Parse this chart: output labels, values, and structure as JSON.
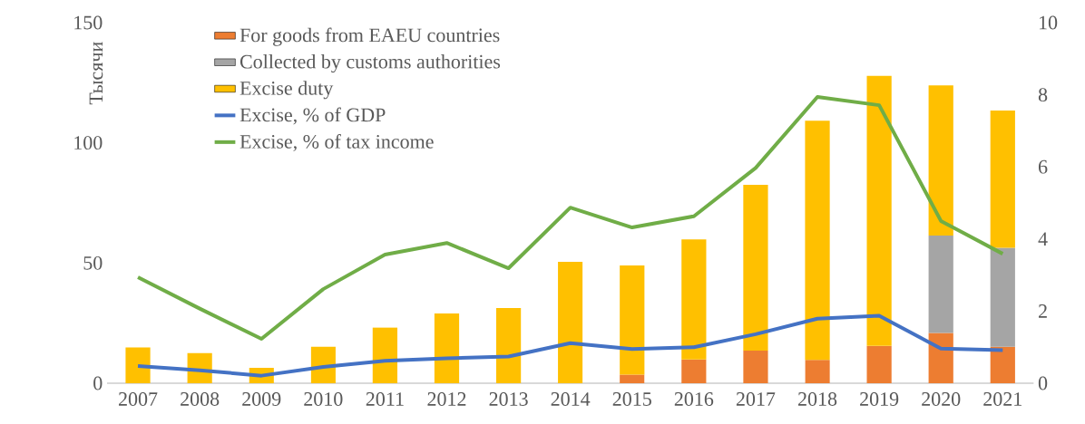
{
  "chart_data": {
    "type": "bar",
    "stacked": true,
    "ylabel": "Тысячи",
    "categories": [
      "2007",
      "2008",
      "2009",
      "2010",
      "2011",
      "2012",
      "2013",
      "2014",
      "2015",
      "2016",
      "2017",
      "2018",
      "2019",
      "2020",
      "2021"
    ],
    "series": [
      {
        "name": "For goods from EAEU countries",
        "color": "#ed7d31",
        "values": [
          null,
          null,
          null,
          null,
          null,
          null,
          null,
          null,
          3.6,
          9.9,
          13.6,
          9.7,
          15.5,
          20.9,
          15.2
        ]
      },
      {
        "name": "Collected by customs authorities",
        "color": "#a5a5a5",
        "values": [
          null,
          null,
          null,
          null,
          null,
          null,
          null,
          null,
          null,
          null,
          null,
          null,
          null,
          40.5,
          41.1
        ]
      },
      {
        "name": "Excise duty",
        "color": "#ffc000",
        "values": [
          14.9,
          12.6,
          6.4,
          15.2,
          23.2,
          29.0,
          31.3,
          50.5,
          45.4,
          49.9,
          68.9,
          99.5,
          112.4,
          62.5,
          57.1
        ]
      },
      {
        "name": "Excise, %  of GDP",
        "type": "line",
        "axis": "y2",
        "color": "#4472c4",
        "values": [
          0.48,
          0.36,
          0.21,
          0.45,
          0.62,
          0.69,
          0.74,
          1.11,
          0.95,
          1.0,
          1.36,
          1.79,
          1.87,
          0.96,
          0.92
        ]
      },
      {
        "name": "Excise, % of tax income",
        "type": "line",
        "axis": "y2",
        "color": "#70ad47",
        "values": [
          2.94,
          2.07,
          1.23,
          2.61,
          3.57,
          3.89,
          3.19,
          4.87,
          4.32,
          4.63,
          5.97,
          7.94,
          7.71,
          4.5,
          3.59
        ]
      }
    ],
    "ylim": [
      0,
      150
    ],
    "yticks": [
      0,
      50,
      100,
      150
    ],
    "y2lim": [
      0,
      10
    ],
    "y2ticks": [
      0,
      2,
      4,
      6,
      8,
      10
    ],
    "legend": "top left",
    "grid": false
  }
}
